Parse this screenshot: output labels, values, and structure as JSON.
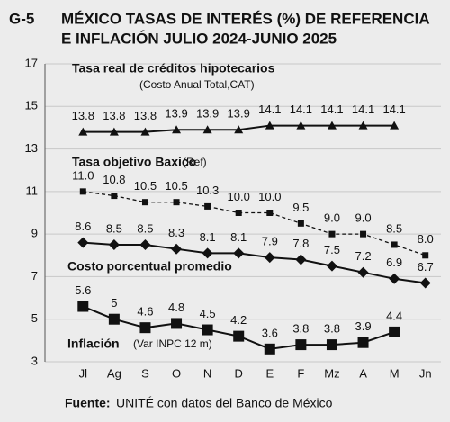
{
  "chart_data": {
    "type": "line",
    "title_prefix": "G-5",
    "title": [
      "MÉXICO TASAS DE INTERÉS (%) DE REFERENCIA",
      "E INFLACIÓN JULIO 2024-JUNIO 2025"
    ],
    "categories": [
      "Jl",
      "Ag",
      "S",
      "O",
      "N",
      "D",
      "E",
      "F",
      "Mz",
      "A",
      "M",
      "Jn"
    ],
    "ylim": [
      3,
      17
    ],
    "yticks": [
      3,
      5,
      7,
      9,
      11,
      13,
      15,
      17
    ],
    "grid": true,
    "series": [
      {
        "name": "Tasa real de créditos hipotecarios",
        "note": "(Costo Anual Total,CAT)",
        "color": "#111111",
        "marker": "triangle",
        "dashed": false,
        "values": [
          13.8,
          13.8,
          13.8,
          13.9,
          13.9,
          13.9,
          14.1,
          14.1,
          14.1,
          14.1,
          14.1,
          null
        ]
      },
      {
        "name": "Tasa objetivo Baxico",
        "note": "(Ref)",
        "color": "#111111",
        "marker": "small-square",
        "dashed": true,
        "values": [
          11.0,
          10.8,
          10.5,
          10.5,
          10.3,
          10.0,
          10.0,
          9.5,
          9.0,
          9.0,
          8.5,
          8.0
        ],
        "value_labels": [
          "11.0",
          "10.8",
          "10.5",
          "10.5",
          "10.3",
          "10.0",
          "10.0",
          "9.5",
          "9.0",
          "9.0",
          "8.5",
          "8.0"
        ]
      },
      {
        "name": "Costo porcentual promedio",
        "color": "#111111",
        "marker": "diamond",
        "dashed": false,
        "values": [
          8.6,
          8.5,
          8.5,
          8.3,
          8.1,
          8.1,
          7.9,
          7.8,
          7.5,
          7.2,
          6.9,
          6.7
        ]
      },
      {
        "name": "Inflación",
        "note": "(Var INPC 12 m)",
        "color": "#111111",
        "marker": "square",
        "dashed": false,
        "values": [
          5.6,
          5.0,
          4.6,
          4.8,
          4.5,
          4.2,
          3.6,
          3.8,
          3.8,
          3.9,
          4.4,
          null
        ]
      }
    ],
    "source_label": "Fuente:",
    "source": "UNITÉ con datos del Banco de México"
  }
}
